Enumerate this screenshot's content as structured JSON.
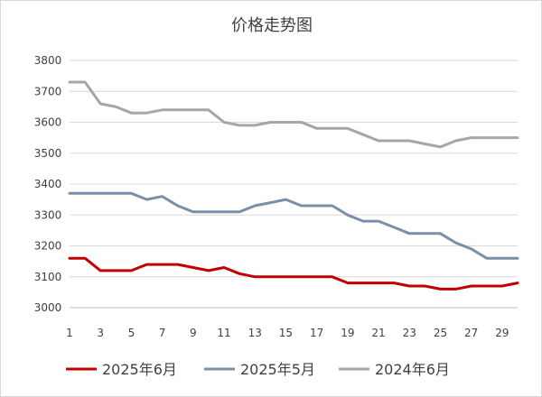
{
  "chart_data": {
    "type": "line",
    "title": "价格走势图",
    "xlabel": "",
    "ylabel": "",
    "x": [
      1,
      2,
      3,
      4,
      5,
      6,
      7,
      8,
      9,
      10,
      11,
      12,
      13,
      14,
      15,
      16,
      17,
      18,
      19,
      20,
      21,
      22,
      23,
      24,
      25,
      26,
      27,
      28,
      29,
      30
    ],
    "x_tick_labels": [
      "1",
      "3",
      "5",
      "7",
      "9",
      "11",
      "13",
      "15",
      "17",
      "19",
      "21",
      "23",
      "25",
      "27",
      "29"
    ],
    "x_tick_values": [
      1,
      3,
      5,
      7,
      9,
      11,
      13,
      15,
      17,
      19,
      21,
      23,
      25,
      27,
      29
    ],
    "ylim": [
      3000,
      3800
    ],
    "y_ticks": [
      3000,
      3100,
      3200,
      3300,
      3400,
      3500,
      3600,
      3700,
      3800
    ],
    "y_tick_labels": [
      "3000",
      "3100",
      "3200",
      "3300",
      "3400",
      "3500",
      "3600",
      "3700",
      "3800"
    ],
    "grid": "horizontal",
    "legend_position": "bottom",
    "series": [
      {
        "name": "2025年6月",
        "color": "#c00000",
        "values": [
          3160,
          3160,
          3120,
          3120,
          3120,
          3140,
          3140,
          3140,
          3130,
          3120,
          3130,
          3110,
          3100,
          3100,
          3100,
          3100,
          3100,
          3100,
          3080,
          3080,
          3080,
          3080,
          3070,
          3070,
          3060,
          3060,
          3070,
          3070,
          3070,
          3080
        ]
      },
      {
        "name": "2025年5月",
        "color": "#7a8fa8",
        "values": [
          3370,
          3370,
          3370,
          3370,
          3370,
          3350,
          3360,
          3330,
          3310,
          3310,
          3310,
          3310,
          3330,
          3340,
          3350,
          3330,
          3330,
          3330,
          3300,
          3280,
          3280,
          3260,
          3240,
          3240,
          3240,
          3210,
          3190,
          3160,
          3160,
          3160
        ]
      },
      {
        "name": "2024年6月",
        "color": "#a6a6a6",
        "values": [
          3730,
          3730,
          3660,
          3650,
          3630,
          3630,
          3640,
          3640,
          3640,
          3640,
          3600,
          3590,
          3590,
          3600,
          3600,
          3600,
          3580,
          3580,
          3580,
          3560,
          3540,
          3540,
          3540,
          3530,
          3520,
          3540,
          3550,
          3550,
          3550,
          3550
        ]
      }
    ]
  }
}
